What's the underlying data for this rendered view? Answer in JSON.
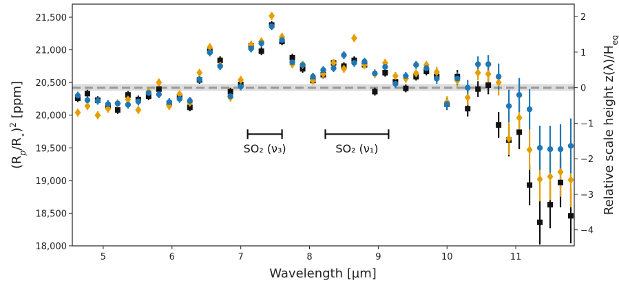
{
  "chart_data": {
    "type": "scatter",
    "title": "",
    "xlabel": "Wavelength [µm]",
    "ylabel_left": "(R_p/R_⋆)² [ppm]",
    "ylabel_right": "Relative scale height z(λ)/H_eq",
    "xlim": [
      4.55,
      11.85
    ],
    "ylim": [
      18000,
      21700
    ],
    "y2lim": [
      -4.45,
      2.35
    ],
    "grid": false,
    "legend": "none",
    "x_ticks": [
      5,
      6,
      7,
      8,
      9,
      10,
      11
    ],
    "x_tick_labels": [
      "5",
      "6",
      "7",
      "8",
      "9",
      "10",
      "11"
    ],
    "y_ticks": [
      18000,
      18500,
      19000,
      19500,
      20000,
      20500,
      21000,
      21500
    ],
    "y_tick_labels": [
      "18,000",
      "18,500",
      "19,000",
      "19,500",
      "20,000",
      "20,500",
      "21,000",
      "21,500"
    ],
    "y2_ticks": [
      -4,
      -3,
      -2,
      -1,
      0,
      1,
      2
    ],
    "y2_tick_labels": [
      "−4",
      "−3",
      "−2",
      "−1",
      "0",
      "1",
      "2"
    ],
    "reference_line": {
      "y": 20420,
      "band": [
        20375,
        20475
      ],
      "color": "#999999"
    },
    "annotations": [
      {
        "label": "SO₂ (ν₃)",
        "x_range": [
          7.1,
          7.6
        ],
        "y": 19710,
        "label_y": 19430
      },
      {
        "label": "SO₂ (ν₁)",
        "x_range": [
          8.23,
          9.15
        ],
        "y": 19710,
        "label_y": 19430
      }
    ],
    "colors": {
      "black": "#111111",
      "orange": "#e69f00",
      "blue": "#1f77b4"
    },
    "series": [
      {
        "marker": "square",
        "color": "#111111",
        "x": [
          4.63,
          4.77,
          4.92,
          5.07,
          5.21,
          5.36,
          5.51,
          5.66,
          5.81,
          5.96,
          6.11,
          6.26,
          6.4,
          6.55,
          6.7,
          6.85,
          7.0,
          7.15,
          7.3,
          7.45,
          7.6,
          7.75,
          7.9,
          8.05,
          8.2,
          8.35,
          8.5,
          8.65,
          8.8,
          8.95,
          9.1,
          9.25,
          9.4,
          9.55,
          9.7,
          9.85,
          10.0,
          10.15,
          10.3,
          10.45,
          10.6,
          10.75,
          10.9,
          11.05,
          11.2,
          11.35,
          11.5,
          11.65,
          11.8
        ],
        "y": [
          20260,
          20330,
          20230,
          20140,
          20080,
          20310,
          20240,
          20290,
          20400,
          20180,
          20280,
          20120,
          20540,
          20980,
          20840,
          20360,
          20470,
          21060,
          20980,
          21380,
          21130,
          20880,
          20710,
          20530,
          20620,
          20800,
          20750,
          20840,
          20770,
          20360,
          20650,
          20510,
          20410,
          20590,
          20670,
          20590,
          20170,
          20590,
          20100,
          20400,
          20460,
          19850,
          19620,
          19740,
          18930,
          18360,
          18630,
          18970,
          18460
        ],
        "err": [
          60,
          60,
          60,
          60,
          60,
          60,
          60,
          60,
          60,
          60,
          60,
          60,
          60,
          60,
          60,
          60,
          60,
          60,
          60,
          60,
          60,
          60,
          60,
          60,
          60,
          60,
          60,
          60,
          60,
          60,
          60,
          60,
          60,
          60,
          60,
          80,
          90,
          100,
          120,
          120,
          140,
          200,
          250,
          260,
          310,
          340,
          360,
          380,
          420
        ]
      },
      {
        "marker": "diamond",
        "color": "#e69f00",
        "x": [
          4.63,
          4.77,
          4.92,
          5.07,
          5.21,
          5.36,
          5.51,
          5.66,
          5.81,
          5.96,
          6.11,
          6.26,
          6.4,
          6.55,
          6.7,
          6.85,
          7.0,
          7.15,
          7.3,
          7.45,
          7.6,
          7.75,
          7.9,
          8.05,
          8.2,
          8.35,
          8.5,
          8.65,
          8.8,
          8.95,
          9.1,
          9.25,
          9.4,
          9.55,
          9.7,
          9.85,
          10.0,
          10.15,
          10.3,
          10.45,
          10.6,
          10.75,
          10.9,
          11.05,
          11.2,
          11.35,
          11.5,
          11.65,
          11.8
        ],
        "y": [
          20040,
          20140,
          20000,
          20100,
          20180,
          20240,
          20080,
          20360,
          20500,
          20140,
          20320,
          20190,
          20650,
          21040,
          20760,
          20270,
          20540,
          21080,
          21130,
          21520,
          21200,
          20780,
          20770,
          20530,
          20630,
          20800,
          20710,
          21180,
          20770,
          20630,
          20800,
          20600,
          20560,
          20640,
          20770,
          20660,
          20200,
          20530,
          20270,
          20650,
          20630,
          20500,
          19640,
          19960,
          19470,
          19020,
          19060,
          19130,
          19010
        ],
        "err": [
          60,
          60,
          60,
          60,
          60,
          60,
          60,
          60,
          60,
          60,
          60,
          60,
          60,
          60,
          60,
          60,
          60,
          60,
          60,
          60,
          60,
          60,
          60,
          60,
          60,
          60,
          60,
          60,
          60,
          60,
          60,
          60,
          60,
          60,
          60,
          80,
          90,
          100,
          120,
          120,
          140,
          200,
          250,
          260,
          310,
          340,
          360,
          380,
          420
        ]
      },
      {
        "marker": "circle",
        "color": "#1f77b4",
        "x": [
          4.63,
          4.77,
          4.92,
          5.07,
          5.21,
          5.36,
          5.51,
          5.66,
          5.81,
          5.96,
          6.11,
          6.26,
          6.4,
          6.55,
          6.7,
          6.85,
          7.0,
          7.15,
          7.3,
          7.45,
          7.6,
          7.75,
          7.9,
          8.05,
          8.2,
          8.35,
          8.5,
          8.65,
          8.8,
          8.95,
          9.1,
          9.25,
          9.4,
          9.55,
          9.7,
          9.85,
          10.0,
          10.15,
          10.3,
          10.45,
          10.6,
          10.75,
          10.9,
          11.05,
          11.2,
          11.35,
          11.5,
          11.65,
          11.8
        ],
        "y": [
          20300,
          20230,
          20220,
          20170,
          20180,
          20160,
          20210,
          20340,
          20320,
          20200,
          20250,
          20220,
          20550,
          20960,
          20750,
          20290,
          20440,
          21020,
          21100,
          21360,
          21150,
          20810,
          20770,
          20590,
          20690,
          20720,
          20920,
          20800,
          20820,
          20640,
          20740,
          20480,
          20600,
          20770,
          20720,
          20560,
          20170,
          20560,
          20420,
          20780,
          20780,
          20590,
          20140,
          20310,
          20090,
          19500,
          19480,
          19480,
          19530
        ],
        "err": [
          60,
          60,
          60,
          60,
          60,
          60,
          60,
          60,
          60,
          60,
          60,
          60,
          60,
          60,
          60,
          60,
          60,
          60,
          60,
          60,
          60,
          60,
          60,
          60,
          60,
          60,
          60,
          60,
          60,
          60,
          60,
          60,
          60,
          60,
          60,
          80,
          90,
          100,
          120,
          120,
          140,
          200,
          250,
          260,
          310,
          340,
          360,
          380,
          420
        ]
      }
    ]
  }
}
